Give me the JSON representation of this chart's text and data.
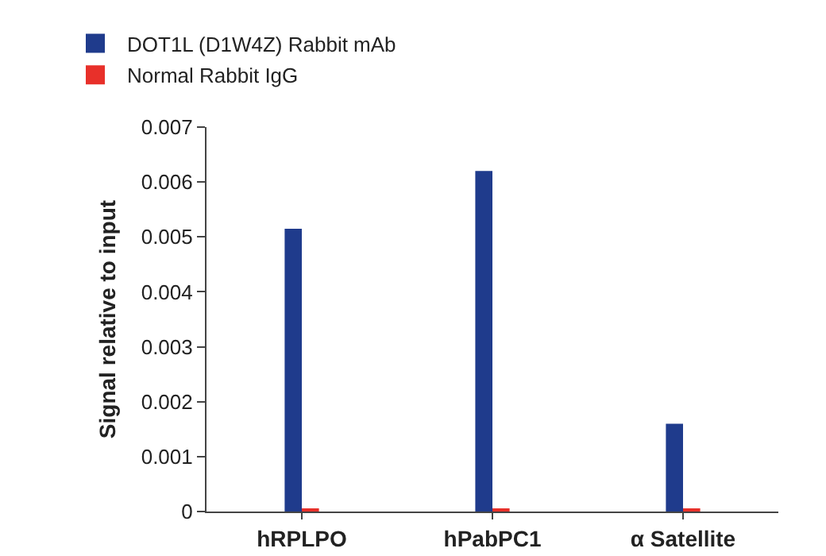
{
  "chart_data": {
    "type": "bar",
    "ylabel": "Signal relative to input",
    "categories": [
      "hRPLPO",
      "hPabPC1",
      "α Satellite"
    ],
    "series": [
      {
        "name": "DOT1L (D1W4Z) Rabbit mAb",
        "color": "#1f3b8c",
        "values": [
          0.00515,
          0.0062,
          0.0016
        ]
      },
      {
        "name": "Normal Rabbit IgG",
        "color": "#e8302a",
        "values": [
          5e-05,
          5e-05,
          5e-05
        ]
      }
    ],
    "ylim": [
      0,
      0.007
    ],
    "yticks": [
      0,
      0.001,
      0.002,
      0.003,
      0.004,
      0.005,
      0.006,
      0.007
    ],
    "grid": false,
    "legend": "top left"
  }
}
